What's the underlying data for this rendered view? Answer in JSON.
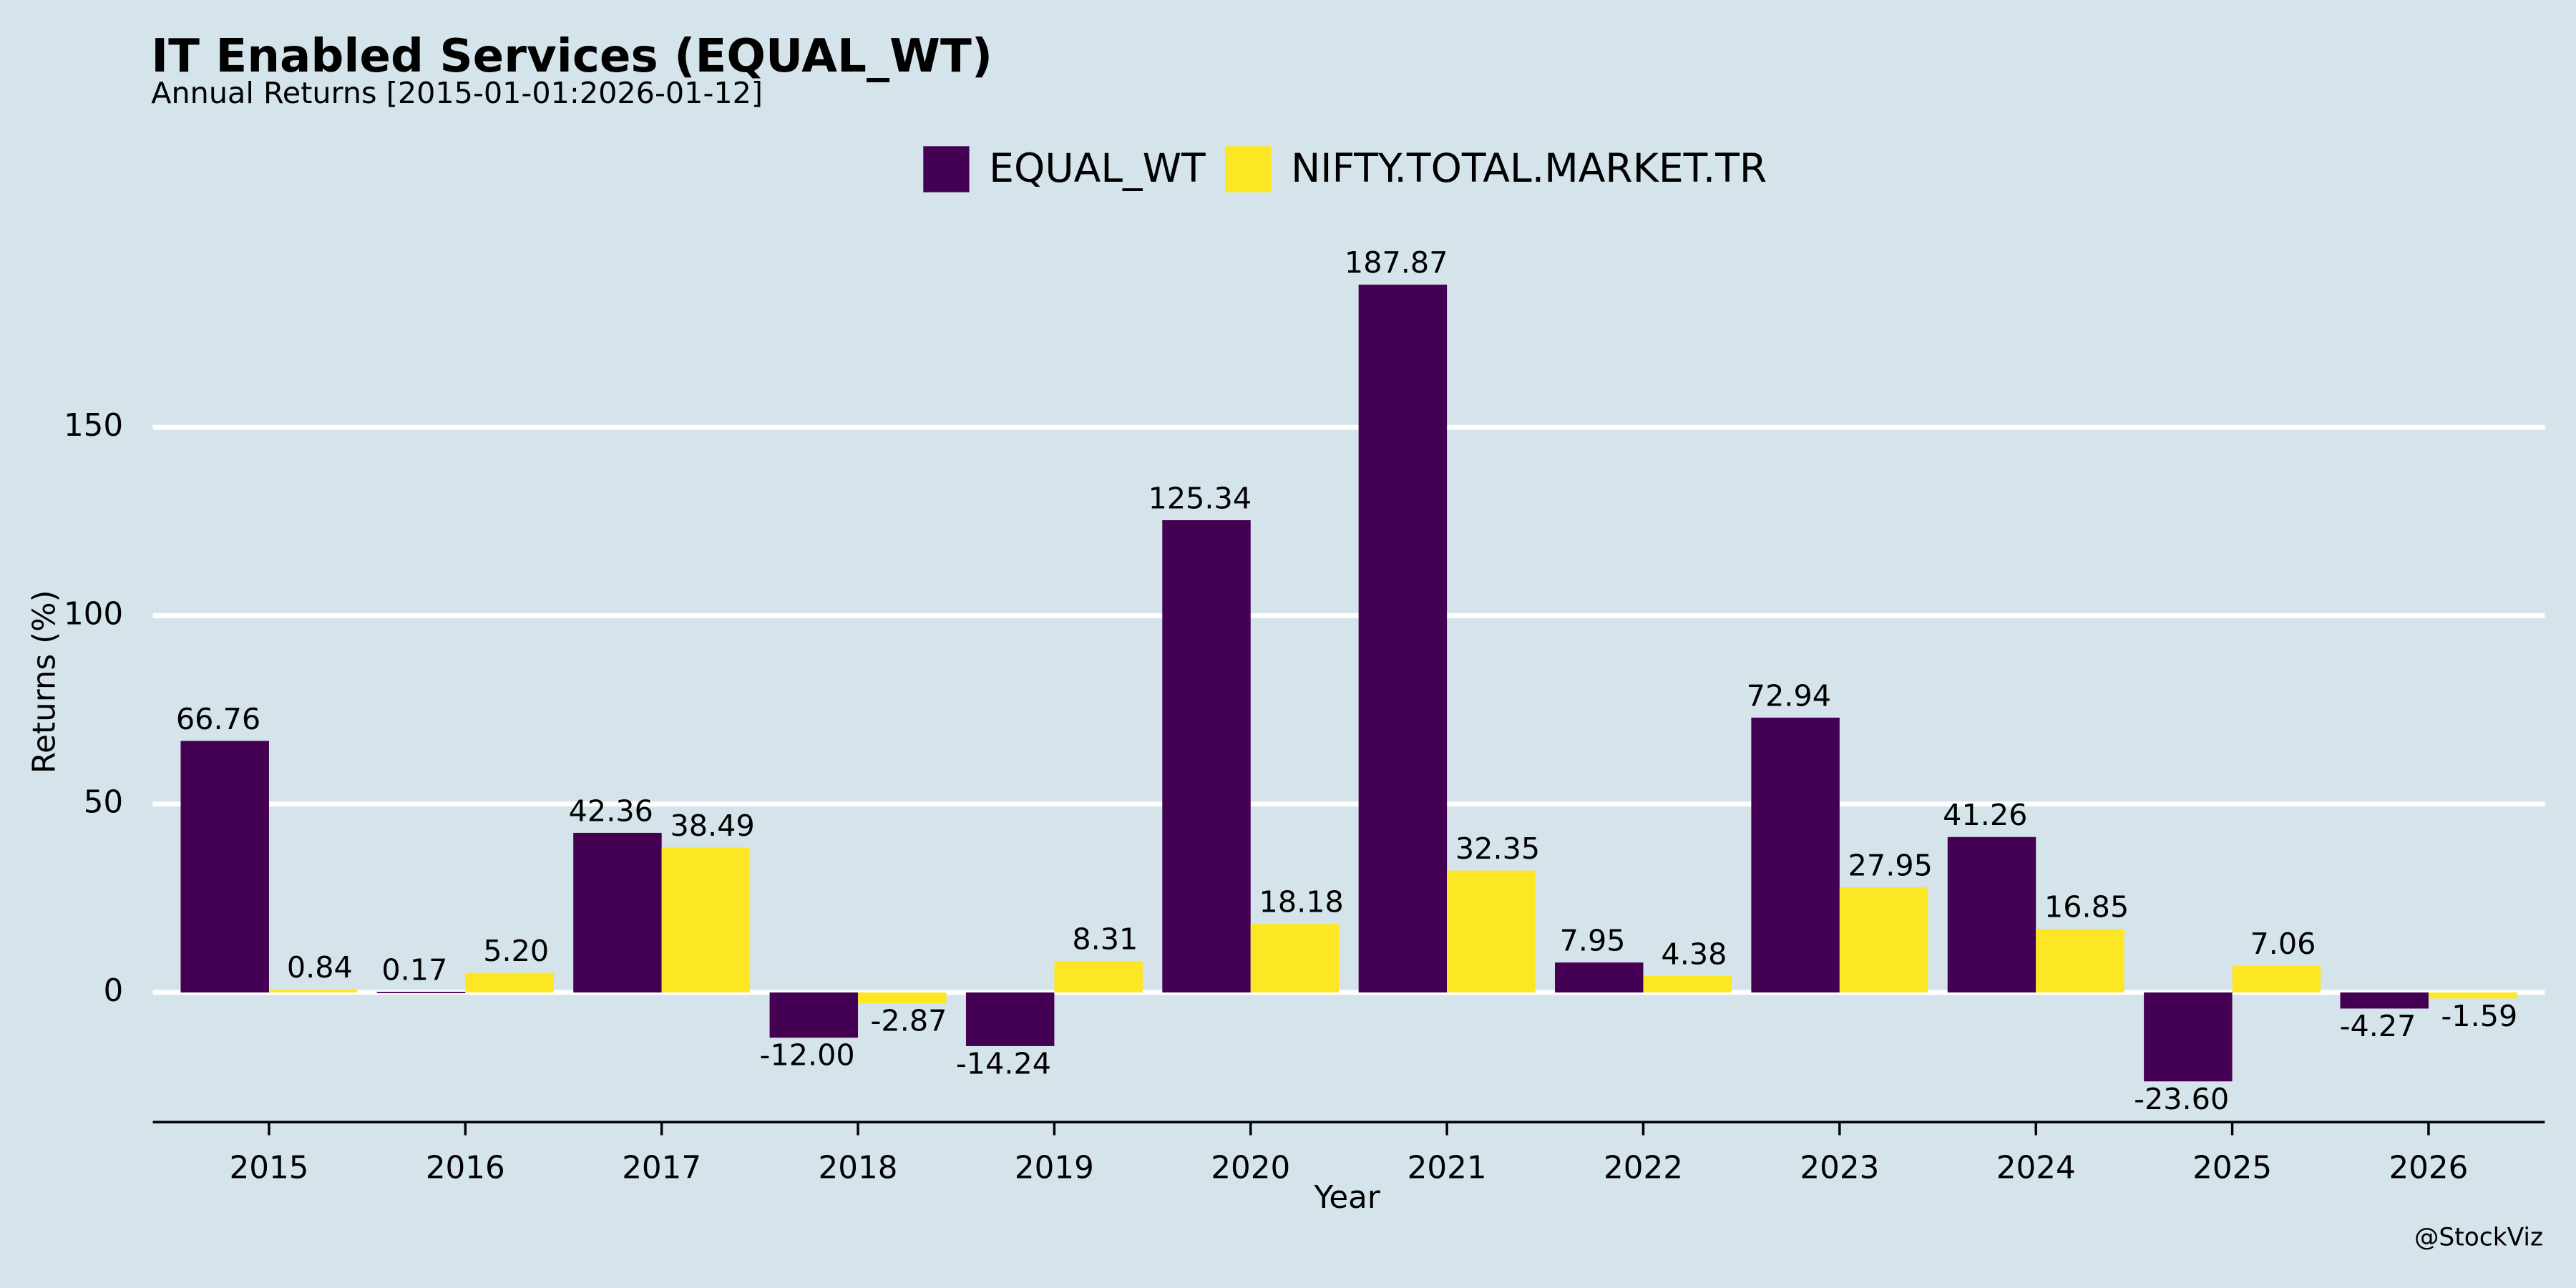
{
  "chart_data": {
    "type": "bar",
    "title": "IT Enabled Services (EQUAL_WT)",
    "subtitle": "Annual Returns [2015-01-01:2026-01-12]",
    "x_label": "Year",
    "y_label": "Returns (%)",
    "credit": "@StockViz",
    "categories": [
      "2015",
      "2016",
      "2017",
      "2018",
      "2019",
      "2020",
      "2021",
      "2022",
      "2023",
      "2024",
      "2025",
      "2026"
    ],
    "series": [
      {
        "name": "EQUAL_WT",
        "color": "#440154",
        "values": [
          66.76,
          0.17,
          42.36,
          -12.0,
          -14.24,
          125.34,
          187.87,
          7.95,
          72.94,
          41.26,
          -23.6,
          -4.27
        ],
        "value_labels": [
          "66.76",
          "0.17",
          "42.36",
          "-12.00",
          "-14.24",
          "125.34",
          "187.87",
          "7.95",
          "72.94",
          "41.26",
          "-23.60",
          "-4.27"
        ]
      },
      {
        "name": "NIFTY.TOTAL.MARKET.TR",
        "color": "#fde725",
        "values": [
          0.84,
          5.2,
          38.49,
          -2.87,
          8.31,
          18.18,
          32.35,
          4.38,
          27.95,
          16.85,
          7.06,
          -1.59
        ],
        "value_labels": [
          "0.84",
          "5.20",
          "38.49",
          "-2.87",
          "8.31",
          "18.18",
          "32.35",
          "4.38",
          "27.95",
          "16.85",
          "7.06",
          "-1.59"
        ]
      }
    ],
    "ylim": [
      -34.4,
      198
    ],
    "yticks": [
      0,
      50,
      100,
      150
    ],
    "grid": true,
    "legend": "top"
  }
}
